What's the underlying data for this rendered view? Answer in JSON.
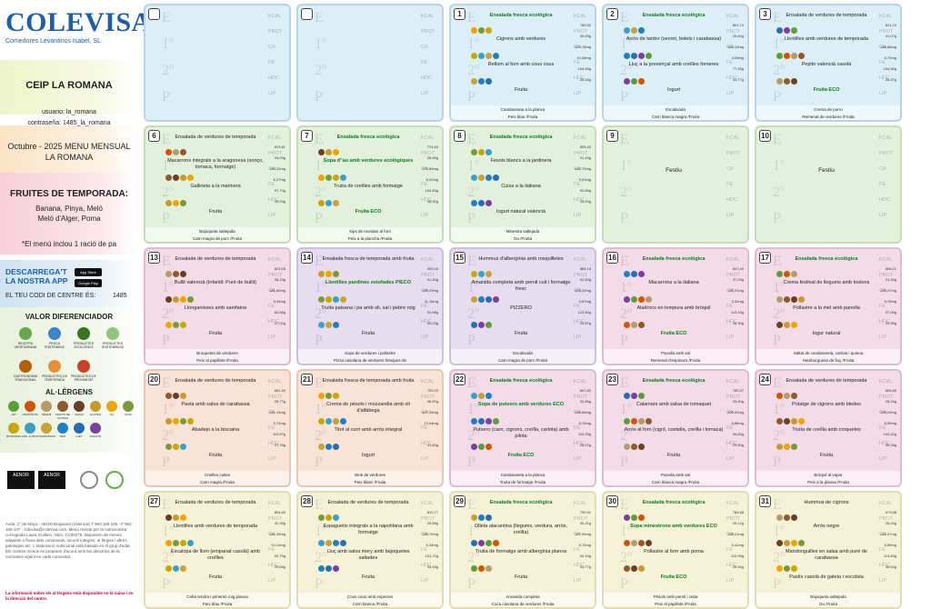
{
  "brand": {
    "name": "COLEVISA",
    "subtitle": "Comedores Levantinos Isabel, SL"
  },
  "school": "CEIP LA ROMANA",
  "credentials": {
    "user": "usuario: la_romana",
    "pass": "contraseña: 1485_la_romana"
  },
  "period": "Octubre - 2025 MENU MENSUAL LA ROMANA",
  "fruits": {
    "title": "FRUITES DE TEMPORADA:",
    "list": [
      "Banana, Pinya, Meló",
      "Meló d'Alger, Poma"
    ]
  },
  "note": "*El menú inclou 1 ració de pa",
  "app": {
    "title": "DESCARREGA'T LA NOSTRA APP",
    "store_a": "App Store",
    "store_g": "Google Play",
    "code_label": "EL TEU CODI DE CENTRE ÉS:",
    "code": "1485"
  },
  "valor": {
    "title": "VALOR DIFERENCIADOR",
    "items": [
      "RECEPTA VEGETARIANA",
      "PESCA SOSTENIBLE",
      "PRODUCTES ECOLÒGICS",
      "PRODUCTES SOSTENIBLES",
      "GASTRONOMIA TRADICIONAL",
      "PRODUCTES DE TEMPORADA",
      "PRODUCTES DE PROXIMITAT"
    ]
  },
  "alergens": {
    "title": "AL·LÈRGENS",
    "items": [
      "API",
      "CRUSTACIS",
      "SÈSAM",
      "FRUITS DE CLOSCA",
      "CACAU",
      "GLUTEN",
      "OU",
      "SOJA",
      "MOSTASSA",
      "MOL·LUSCS",
      "TRAMUSSOS",
      "PEIX",
      "LLET",
      "SULFITS"
    ],
    "colors": [
      "#5a9e3a",
      "#d35400",
      "#b59a6a",
      "#8e5a2b",
      "#6b3e26",
      "#c99a2e",
      "#f0a400",
      "#7a9a3a",
      "#c8a700",
      "#3aa0c8",
      "#c6a23a",
      "#1f7fc6",
      "#2a6bb3",
      "#7b3f9e"
    ]
  },
  "certs": [
    "AENOR",
    "AENOR"
  ],
  "footer": "Avda. 1º de Mayo - 46100 Burjassot (Valencia) T 963 169 106 - F 963 169 107 - colevisa@colevisa.com. Menú revisat per la nutricionista col·legiada Laura Guillem, Núm. CV00275. Disposem de menús adaptats a fitxes dels comensals, racons intègres, al·lèrgies i altres patologies etc. L'elaboració nutricional està basada en el grup d'edat. Els nostres menús es preparen d'acord amb les directrius de la normativa vigent en cada comunitat.",
  "footer_b": "La informació sobre els al·lèrgens està disponible en la cuina i en la direcció del centre.",
  "nutr_labels": [
    "KCAL",
    "PROT",
    "CA",
    "FE",
    "HDC",
    "LIP"
  ],
  "days": [
    {
      "n": "",
      "color": "blue",
      "empty": true
    },
    {
      "n": "",
      "color": "blue",
      "empty": true
    },
    {
      "n": "1",
      "color": "blue",
      "first": "Ensalada fresca ecològica",
      "first_eco": true,
      "second": "Cigrons amb verdures",
      "third": "Rellom al forn amb cous cous",
      "dessert": "Fruita",
      "dinner": [
        "Carabassetа a la planxa",
        "Peix blau /Fruita"
      ],
      "vals": [
        "789,92",
        "30,93g",
        "224,78mg",
        "10,45mg",
        "104,93g",
        "28,34g"
      ]
    },
    {
      "n": "2",
      "color": "blue",
      "first": "Ensalada fresca ecològica",
      "first_eco": true,
      "second": "Arròs de tardor (secret, bolets i carabassa)",
      "third": "Lluç a la provençal amb creïlles forneres",
      "dessert": "Iogurt",
      "dinner": [
        "Escalivada",
        "Carn blanca magra /Fruita"
      ],
      "vals": [
        "801,74",
        "29,40g",
        "302,19mg",
        "4,05mg",
        "77,43g",
        "33,77g"
      ]
    },
    {
      "n": "3",
      "color": "blue",
      "first": "Ensalada de verdures de temporada",
      "second": "Llentilles amb verdures de temporada",
      "third": "Pepito valencià casolà",
      "dessert": "Fruita ECO",
      "dessert_eco": true,
      "dinner": [
        "Crema de porro",
        "Remenat de verdures /Fruita"
      ],
      "vals": [
        "811,74",
        "31,07g",
        "146,86mg",
        "6,70mg",
        "104,30g",
        "28,37g"
      ]
    },
    {
      "n": "6",
      "color": "green",
      "first": "Ensalada de verdures de temporada",
      "second": "Macarrons integrals a la aragonesa (xoriço, tomaca, formatge)",
      "third": "Gallineta a la marinera",
      "dessert": "Fruita",
      "dinner": [
        "Bajoqueta saltejada",
        "Carn magra de porc /Fruita"
      ],
      "vals": [
        "813,81",
        "34,09g",
        "194,33mg",
        "6,27mg",
        "97,73g",
        "29,29g"
      ]
    },
    {
      "n": "7",
      "color": "green",
      "first": "Ensalada fresca ecològica",
      "first_eco": true,
      "second": "Sopa d\"au amb verdures ecològiques",
      "second_eco": true,
      "third": "Truita de creïlles amb formatge",
      "dessert": "Fruita ECO",
      "dessert_eco": true,
      "dinner": [
        "Xips de moniato al forn",
        "Peix a la plancha /Fruita"
      ],
      "vals": [
        "774,63",
        "28,46g",
        "270,89mg",
        "6,02mg",
        "100,43g",
        "28,32g"
      ]
    },
    {
      "n": "8",
      "color": "green",
      "first": "Ensalada fresca ecològica",
      "first_eco": true,
      "second": "Fesols blancs a la jardinera",
      "third": "Cuixa a la italiana",
      "dessert": "Iogurt natural valencià",
      "dinner": [
        "Minestra saltejada",
        "Ou /Fruita"
      ],
      "vals": [
        "826,40",
        "31,19g",
        "442,79mg",
        "9,91mg",
        "92,89g",
        "29,42g"
      ]
    },
    {
      "n": "9",
      "color": "green",
      "ko": "Festiu"
    },
    {
      "n": "10",
      "color": "green",
      "ko": "Festiu"
    },
    {
      "n": "13",
      "color": "pink",
      "first": "Ensalada de verdures de temporada",
      "second": "Bullit valencià (Infantil: Puré de bullit)",
      "third": "Llonganisses amb samfaina",
      "dessert": "Fruita",
      "dinner": [
        "Broquetes de verdures",
        "Peix al papillote /Fruita"
      ],
      "vals": [
        "823,08",
        "38,23g",
        "181,60mg",
        "5,34mg",
        "84,58g",
        "47,02g"
      ]
    },
    {
      "n": "14",
      "color": "lav",
      "first": "Ensalada fresca de temporada amb fruita",
      "second": "Llentilles pardines estofades P/ECO",
      "second_eco": true,
      "third": "Truita paisana i pa amb oli, sal i pebre roig",
      "dessert": "Fruita",
      "dinner": [
        "Sopa de verdures i pollastre",
        "Pizza casolana de verdures fresques de"
      ],
      "vals": [
        "900,44",
        "41,20g",
        "190,29mg",
        "11,16mg",
        "94,98g",
        "30,23g"
      ]
    },
    {
      "n": "15",
      "color": "lav",
      "first": "Hummus d'albergínia amb rosquilletes",
      "second": "Amanida completa amb pernil cuit i formatge fresc",
      "third": "PIZZERO",
      "dessert": "Fruita",
      "dinner": [
        "Escalivada",
        "Carn magra de porc /Fruita"
      ],
      "vals": [
        "884,18",
        "42,60g",
        "423,32mg",
        "9,87mg",
        "122,50g",
        "25,87g"
      ]
    },
    {
      "n": "16",
      "color": "pink",
      "first": "Ensalada fresca ecològica",
      "first_eco": true,
      "second": "Macarrons a la italiana",
      "third": "Aladrocs en tempura amb bròquil",
      "dessert": "Fruita ECO",
      "dessert_eco": true,
      "dinner": [
        "Panolla amb sal",
        "Remenat d'espinacs /Fruita"
      ],
      "vals": [
        "847,49",
        "37,09g",
        "132,01mg",
        "3,32mg",
        "113,19g",
        "28,30g"
      ]
    },
    {
      "n": "17",
      "color": "pink",
      "first": "Ensalada fresca ecològica",
      "first_eco": true,
      "second": "Crema festival de llegums amb tostons",
      "third": "Pollastre a la mel amb panolla",
      "dessert": "Iogur natural",
      "dinner": [
        "Saltat de carabasseta, carlota i quinoa",
        "Hamburguesa de lluç /Fruita"
      ],
      "vals": [
        "808,21",
        "31,94g",
        "200,07mg",
        "5,78mg",
        "97,09g",
        "29,39g"
      ]
    },
    {
      "n": "20",
      "color": "orange",
      "first": "Ensalada de verdures de temporada",
      "second": "Pasta amb salsa de carabassa",
      "third": "Abadejo a la biscaina",
      "dessert": "Fruita",
      "dinner": [
        "Creïlles cuites",
        "Carn magra /Fruita"
      ],
      "vals": [
        "851,30",
        "28,77g",
        "221,14mg",
        "5,74mg",
        "110,97g",
        "37,78g"
      ]
    },
    {
      "n": "21",
      "color": "orange",
      "first": "Ensalada fresca de temporada amb fruita",
      "second": "Crema de pèsols i mozzarella amb oli d'alfàbega",
      "third": "Titot al curri amb arròs integral",
      "dessert": "Iogurt",
      "dinner": [
        "Wok de verdures",
        "Peix blanc /Fruita"
      ],
      "vals": [
        "792,03",
        "46,87g",
        "427,39mg",
        "13,44mg",
        "",
        "41,82g"
      ]
    },
    {
      "n": "22",
      "color": "pink",
      "first": "Ensalada fresca ecològica",
      "first_eco": true,
      "second": "Sopa de putxero amb verdures ECO",
      "second_eco": true,
      "third": "Putxero (carn, cigrons, creïlla, carlota) amb pilota",
      "dessert": "Fruita ECO",
      "dessert_eco": true,
      "dinner": [
        "Carabassetа a la planxa",
        "Truita de formatge /Fruita"
      ],
      "vals": [
        "807,82",
        "32,65g",
        "218,86mg",
        "6,76mg",
        "110,33g",
        "28,27g"
      ]
    },
    {
      "n": "23",
      "color": "pink",
      "first": "Ensalada fresca ecològica",
      "first_eco": true,
      "second": "Calamars amb salsa de tomaquet",
      "third": "Arròs al forn (cigró, costella, creïlla i tomaca)",
      "dessert": "Fruita",
      "dinner": [
        "Panolla amb sal",
        "Carn blanca magra /Fruita"
      ],
      "vals": [
        "780,37",
        "29,40g",
        "202,92mg",
        "6,88mg",
        "96,60g",
        "29,50g"
      ]
    },
    {
      "n": "24",
      "color": "pink",
      "first": "Ensalada de verdures de temporada",
      "second": "Potatge de cigrons amb bledes",
      "third": "Truita de creïlla amb croquetes",
      "dessert": "Fruita",
      "dinner": [
        "Bròquil al vapor",
        "Peix a la planxa /Fruita"
      ],
      "vals": [
        "806,80",
        "28,24g",
        "249,29mg",
        "8,55mg",
        "104,42g",
        "30,28g"
      ]
    },
    {
      "n": "27",
      "color": "yellow",
      "first": "Ensalada de verdures de temporada",
      "second": "Llentilles amb verdures de temporada",
      "third": "Escalopa de llom (empanat casolà) amb creïlles",
      "dessert": "Fruita",
      "dinner": [
        "Ceba tendra i pimentó roig planxa",
        "Peix blau /Fruita"
      ],
      "vals": [
        "804,60",
        "32,39g",
        "241,35mg",
        "10,10mg",
        "92,79g",
        "29,08g"
      ]
    },
    {
      "n": "28",
      "color": "yellow",
      "first": "Ensalada de verdures de temporada",
      "second": "Espaguetis integrals a la napolitana amb formatge",
      "third": "Lluç amb salsa mery amb bajoquetes saltades",
      "dessert": "Fruita",
      "dinner": [
        "Cous cous amb especies",
        "Carn blanca /Fruita"
      ],
      "vals": [
        "810,77",
        "29,58g",
        "230,70mg",
        "6,34mg",
        "101,72g",
        "34,18g"
      ]
    },
    {
      "n": "29",
      "color": "yellow",
      "first": "Ensalada fresca ecològica",
      "first_eco": true,
      "second": "Olleta alacantina (llegums, verdura, arròs, creïlla)",
      "third": "Truita de formatge amb albergínia planxa",
      "dessert": "Fruita",
      "dinner": [
        "Amanida completa",
        "Coca casolana de verdures /Fruita"
      ],
      "vals": [
        "790,91",
        "30,21g",
        "337,90mg",
        "6,70mg",
        "92,19g",
        "34,77g"
      ]
    },
    {
      "n": "30",
      "color": "yellow",
      "first": "Ensalada fresca ecològica",
      "first_eco": true,
      "second": "Sopa minestrone amb verdures ECO",
      "second_eco": true,
      "third": "Pollastre al forn amb poma",
      "dessert": "Fruita ECO",
      "dessert_eco": true,
      "dinner": [
        "Pèsols amb pernil i ceba",
        "Peix al papillote /Fruita"
      ],
      "vals": [
        "784,68",
        "29,12g",
        "208,21mg",
        "6,42mg",
        "110,99g",
        "26,16g"
      ]
    },
    {
      "n": "31",
      "color": "yellow",
      "first": "Hummus de cigrons",
      "second": "Arròs negre",
      "third": "Mandonguilles en salsa amb puré de carabassa",
      "dessert": "Pastís casolà de galeta i xocolata",
      "dinner": [
        "Bajoqueta saltejada",
        "Ou /Fruita"
      ],
      "vals": [
        "979,88",
        "26,24g",
        "210,07mg",
        "6,89mg",
        "113,83g",
        "36,63g"
      ]
    }
  ]
}
